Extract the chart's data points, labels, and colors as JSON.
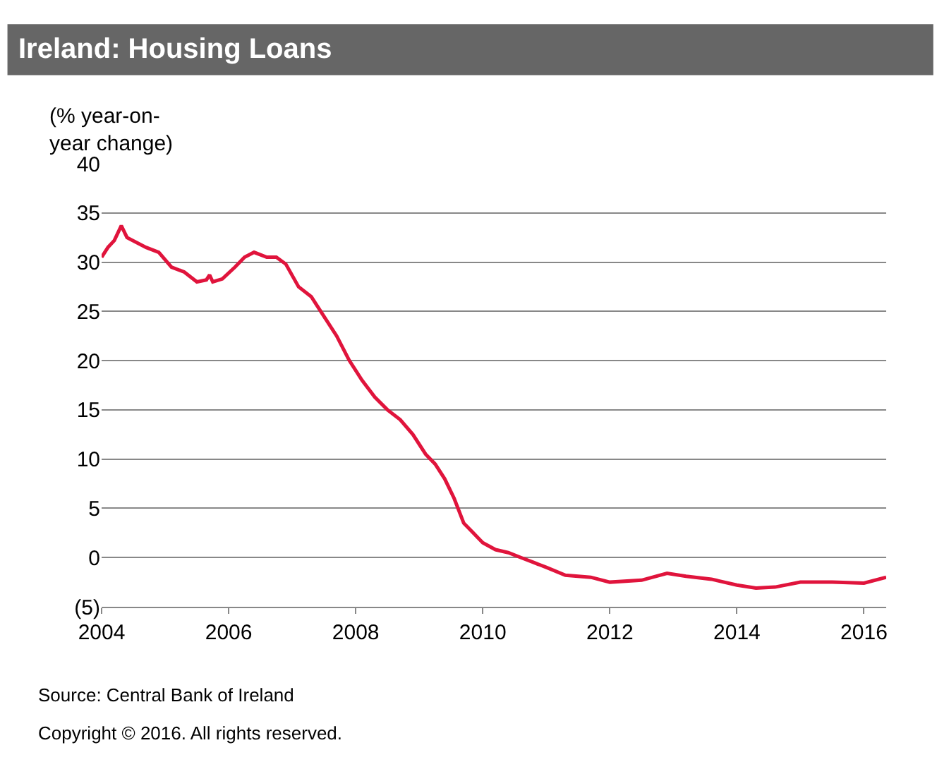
{
  "chart_data": {
    "type": "line",
    "title": "Ireland: Housing Loans",
    "ylabel": "(% year-on-year change)",
    "x": [
      2004.0,
      2004.1,
      2004.2,
      2004.31,
      2004.4,
      2004.7,
      2004.9,
      2005.1,
      2005.3,
      2005.5,
      2005.65,
      2005.7,
      2005.75,
      2005.9,
      2006.1,
      2006.25,
      2006.4,
      2006.6,
      2006.75,
      2006.9,
      2007.1,
      2007.3,
      2007.5,
      2007.7,
      2007.9,
      2008.1,
      2008.3,
      2008.5,
      2008.7,
      2008.9,
      2009.1,
      2009.25,
      2009.4,
      2009.55,
      2009.7,
      2009.85,
      2010.0,
      2010.2,
      2010.4,
      2010.6,
      2010.8,
      2011.0,
      2011.3,
      2011.7,
      2012.0,
      2012.5,
      2012.9,
      2013.2,
      2013.6,
      2014.0,
      2014.3,
      2014.6,
      2015.0,
      2015.5,
      2016.0,
      2016.35
    ],
    "series": [
      {
        "color": "#e0143c",
        "values": [
          30.5,
          31.5,
          32.2,
          33.7,
          32.5,
          31.5,
          31,
          29.5,
          29,
          28,
          28.2,
          28.7,
          28,
          28.3,
          29.5,
          30.5,
          31,
          30.5,
          30.5,
          29.8,
          27.5,
          26.5,
          24.5,
          22.5,
          20,
          18,
          16.3,
          15,
          14,
          12.5,
          10.5,
          9.5,
          8,
          6,
          3.5,
          2.5,
          1.5,
          0.8,
          0.5,
          0,
          -0.5,
          -1,
          -1.8,
          -2,
          -2.5,
          -2.3,
          -1.6,
          -1.9,
          -2.2,
          -2.8,
          -3.1,
          -3.0,
          -2.5,
          -2.5,
          -2.6,
          -2.0
        ]
      }
    ],
    "xlim": [
      2004,
      2016.35
    ],
    "xticks": [
      2004,
      2006,
      2008,
      2010,
      2012,
      2014,
      2016
    ],
    "ylim": [
      -5,
      40
    ],
    "yticks": [
      {
        "value": -5,
        "label": "(5)"
      },
      0,
      5,
      10,
      15,
      20,
      25,
      30,
      35,
      40
    ],
    "grid": "y",
    "marker": "none",
    "line_style": "solid",
    "annotations": [
      "Source: Central Bank of Ireland",
      "Copyright © 2016. All rights reserved."
    ]
  }
}
